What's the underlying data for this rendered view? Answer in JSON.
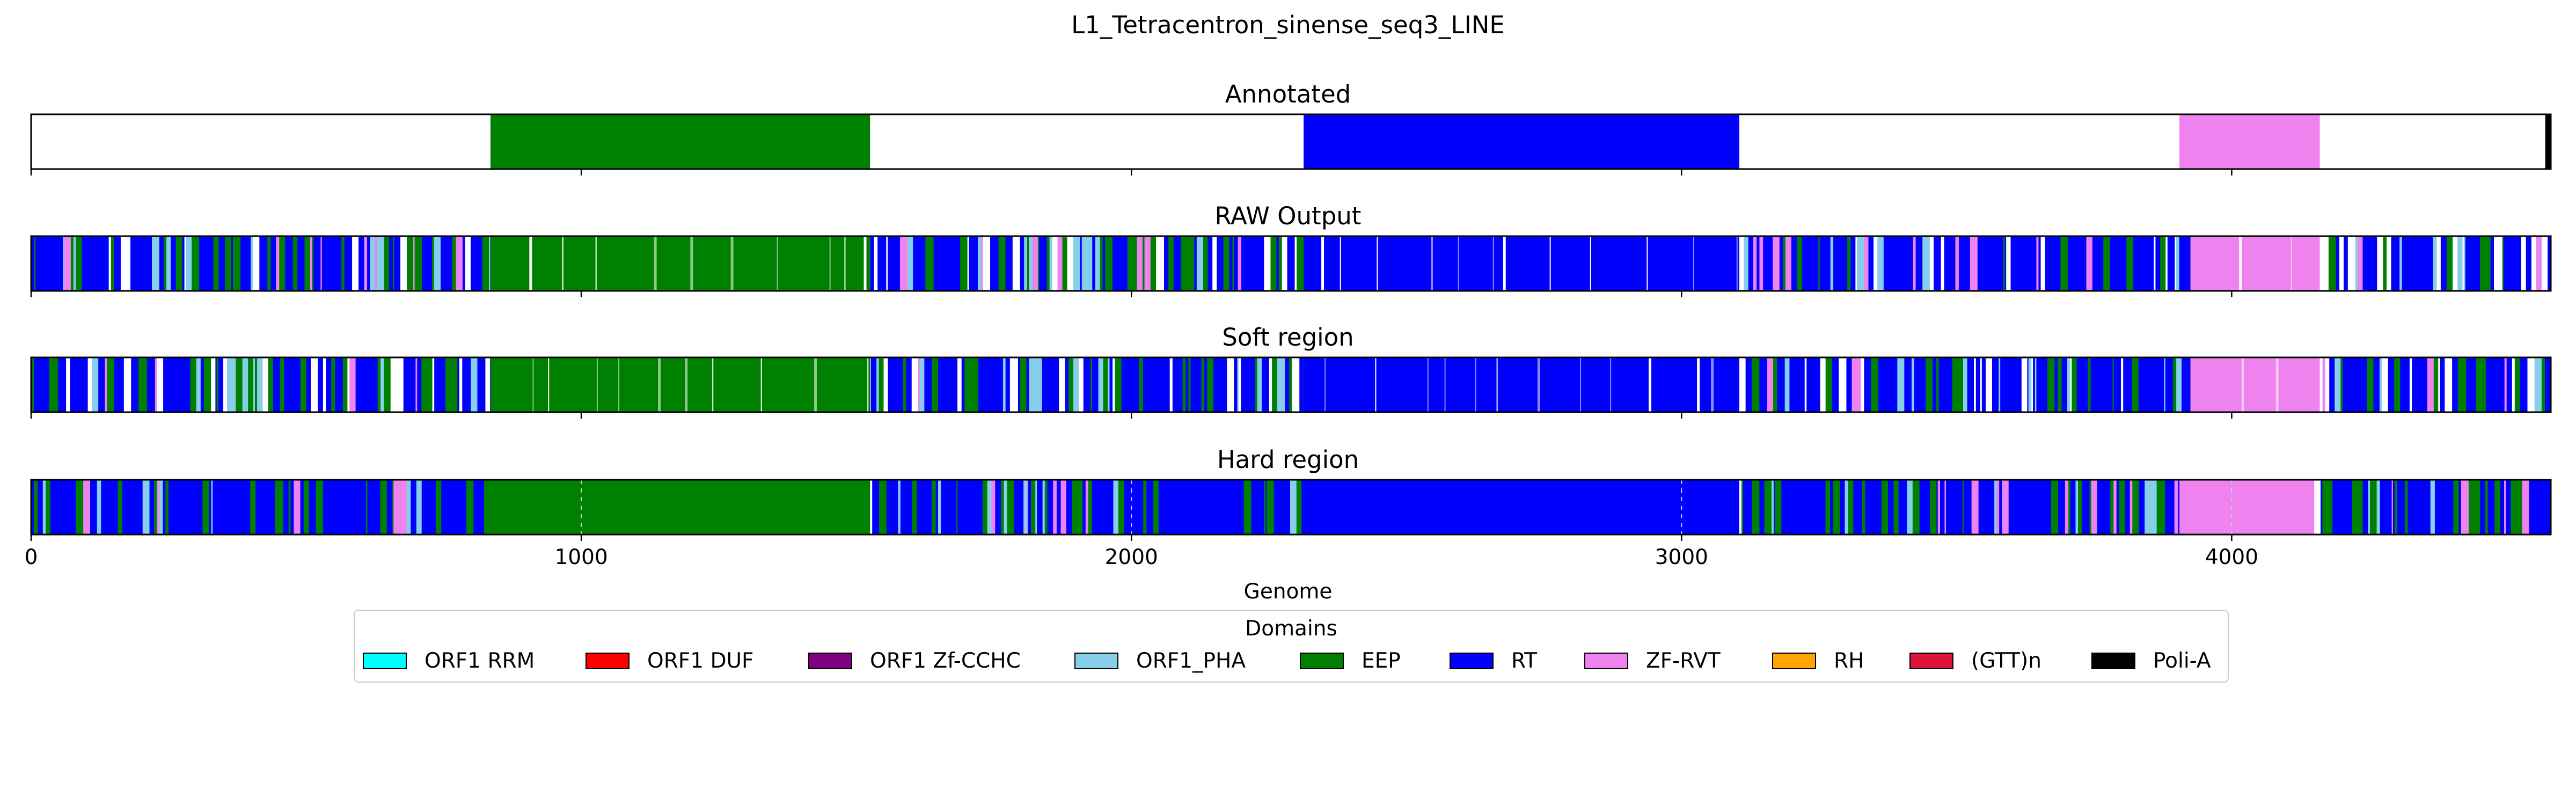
{
  "chart_data": {
    "type": "bar",
    "title": "L1_Tetracentron_sinense_seq3_LINE",
    "xlabel": "Genome",
    "xlim": [
      0,
      4580
    ],
    "xticks": [
      0,
      1000,
      2000,
      3000,
      4000
    ],
    "xtick_labels": [
      "0",
      "1000",
      "2000",
      "3000",
      "4000"
    ],
    "grid": "x dashed",
    "legend": {
      "title": "Domains",
      "placement": "bottom-center",
      "entries": [
        {
          "label": "ORF1 RRM",
          "color": "#00ffff"
        },
        {
          "label": "ORF1 DUF",
          "color": "#ff0000"
        },
        {
          "label": "ORF1 Zf-CCHC",
          "color": "#800080"
        },
        {
          "label": "ORF1_PHA",
          "color": "#87ceeb"
        },
        {
          "label": "EEP",
          "color": "#008000"
        },
        {
          "label": "RT",
          "color": "#0000ff"
        },
        {
          "label": "ZF-RVT",
          "color": "#ee82ee"
        },
        {
          "label": "RH",
          "color": "#ffa500"
        },
        {
          "label": "(GTT)n",
          "color": "#dc143c"
        },
        {
          "label": "Poli-A",
          "color": "#000000"
        }
      ]
    },
    "panels": [
      {
        "title": "Annotated",
        "mode": "clean",
        "segments": [
          {
            "domain": "EEP",
            "start": 835,
            "end": 1525
          },
          {
            "domain": "RT",
            "start": 2313,
            "end": 3105
          },
          {
            "domain": "ZF-RVT",
            "start": 3905,
            "end": 4160
          },
          {
            "domain": "Poli-A",
            "start": 4570,
            "end": 4580
          }
        ]
      },
      {
        "title": "RAW Output",
        "mode": "noisy",
        "seed": 11,
        "white_fraction": 0.12,
        "segments": [
          {
            "domain": "EEP",
            "start": 835,
            "end": 1525
          },
          {
            "domain": "RT",
            "start": 2313,
            "end": 3105
          },
          {
            "domain": "ZF-RVT",
            "start": 3925,
            "end": 4160
          }
        ]
      },
      {
        "title": "Soft region",
        "mode": "noisy",
        "seed": 29,
        "white_fraction": 0.11,
        "segments": [
          {
            "domain": "EEP",
            "start": 835,
            "end": 1525
          },
          {
            "domain": "RT",
            "start": 2313,
            "end": 3105
          },
          {
            "domain": "ZF-RVT",
            "start": 3925,
            "end": 4160
          }
        ]
      },
      {
        "title": "Hard region",
        "mode": "noisy-solid",
        "seed": 47,
        "white_fraction": 0.0,
        "segments": [
          {
            "domain": "EEP",
            "start": 835,
            "end": 1525
          },
          {
            "domain": "RT",
            "start": 2313,
            "end": 3105
          },
          {
            "domain": "ZF-RVT",
            "start": 3905,
            "end": 4150
          }
        ]
      }
    ]
  }
}
